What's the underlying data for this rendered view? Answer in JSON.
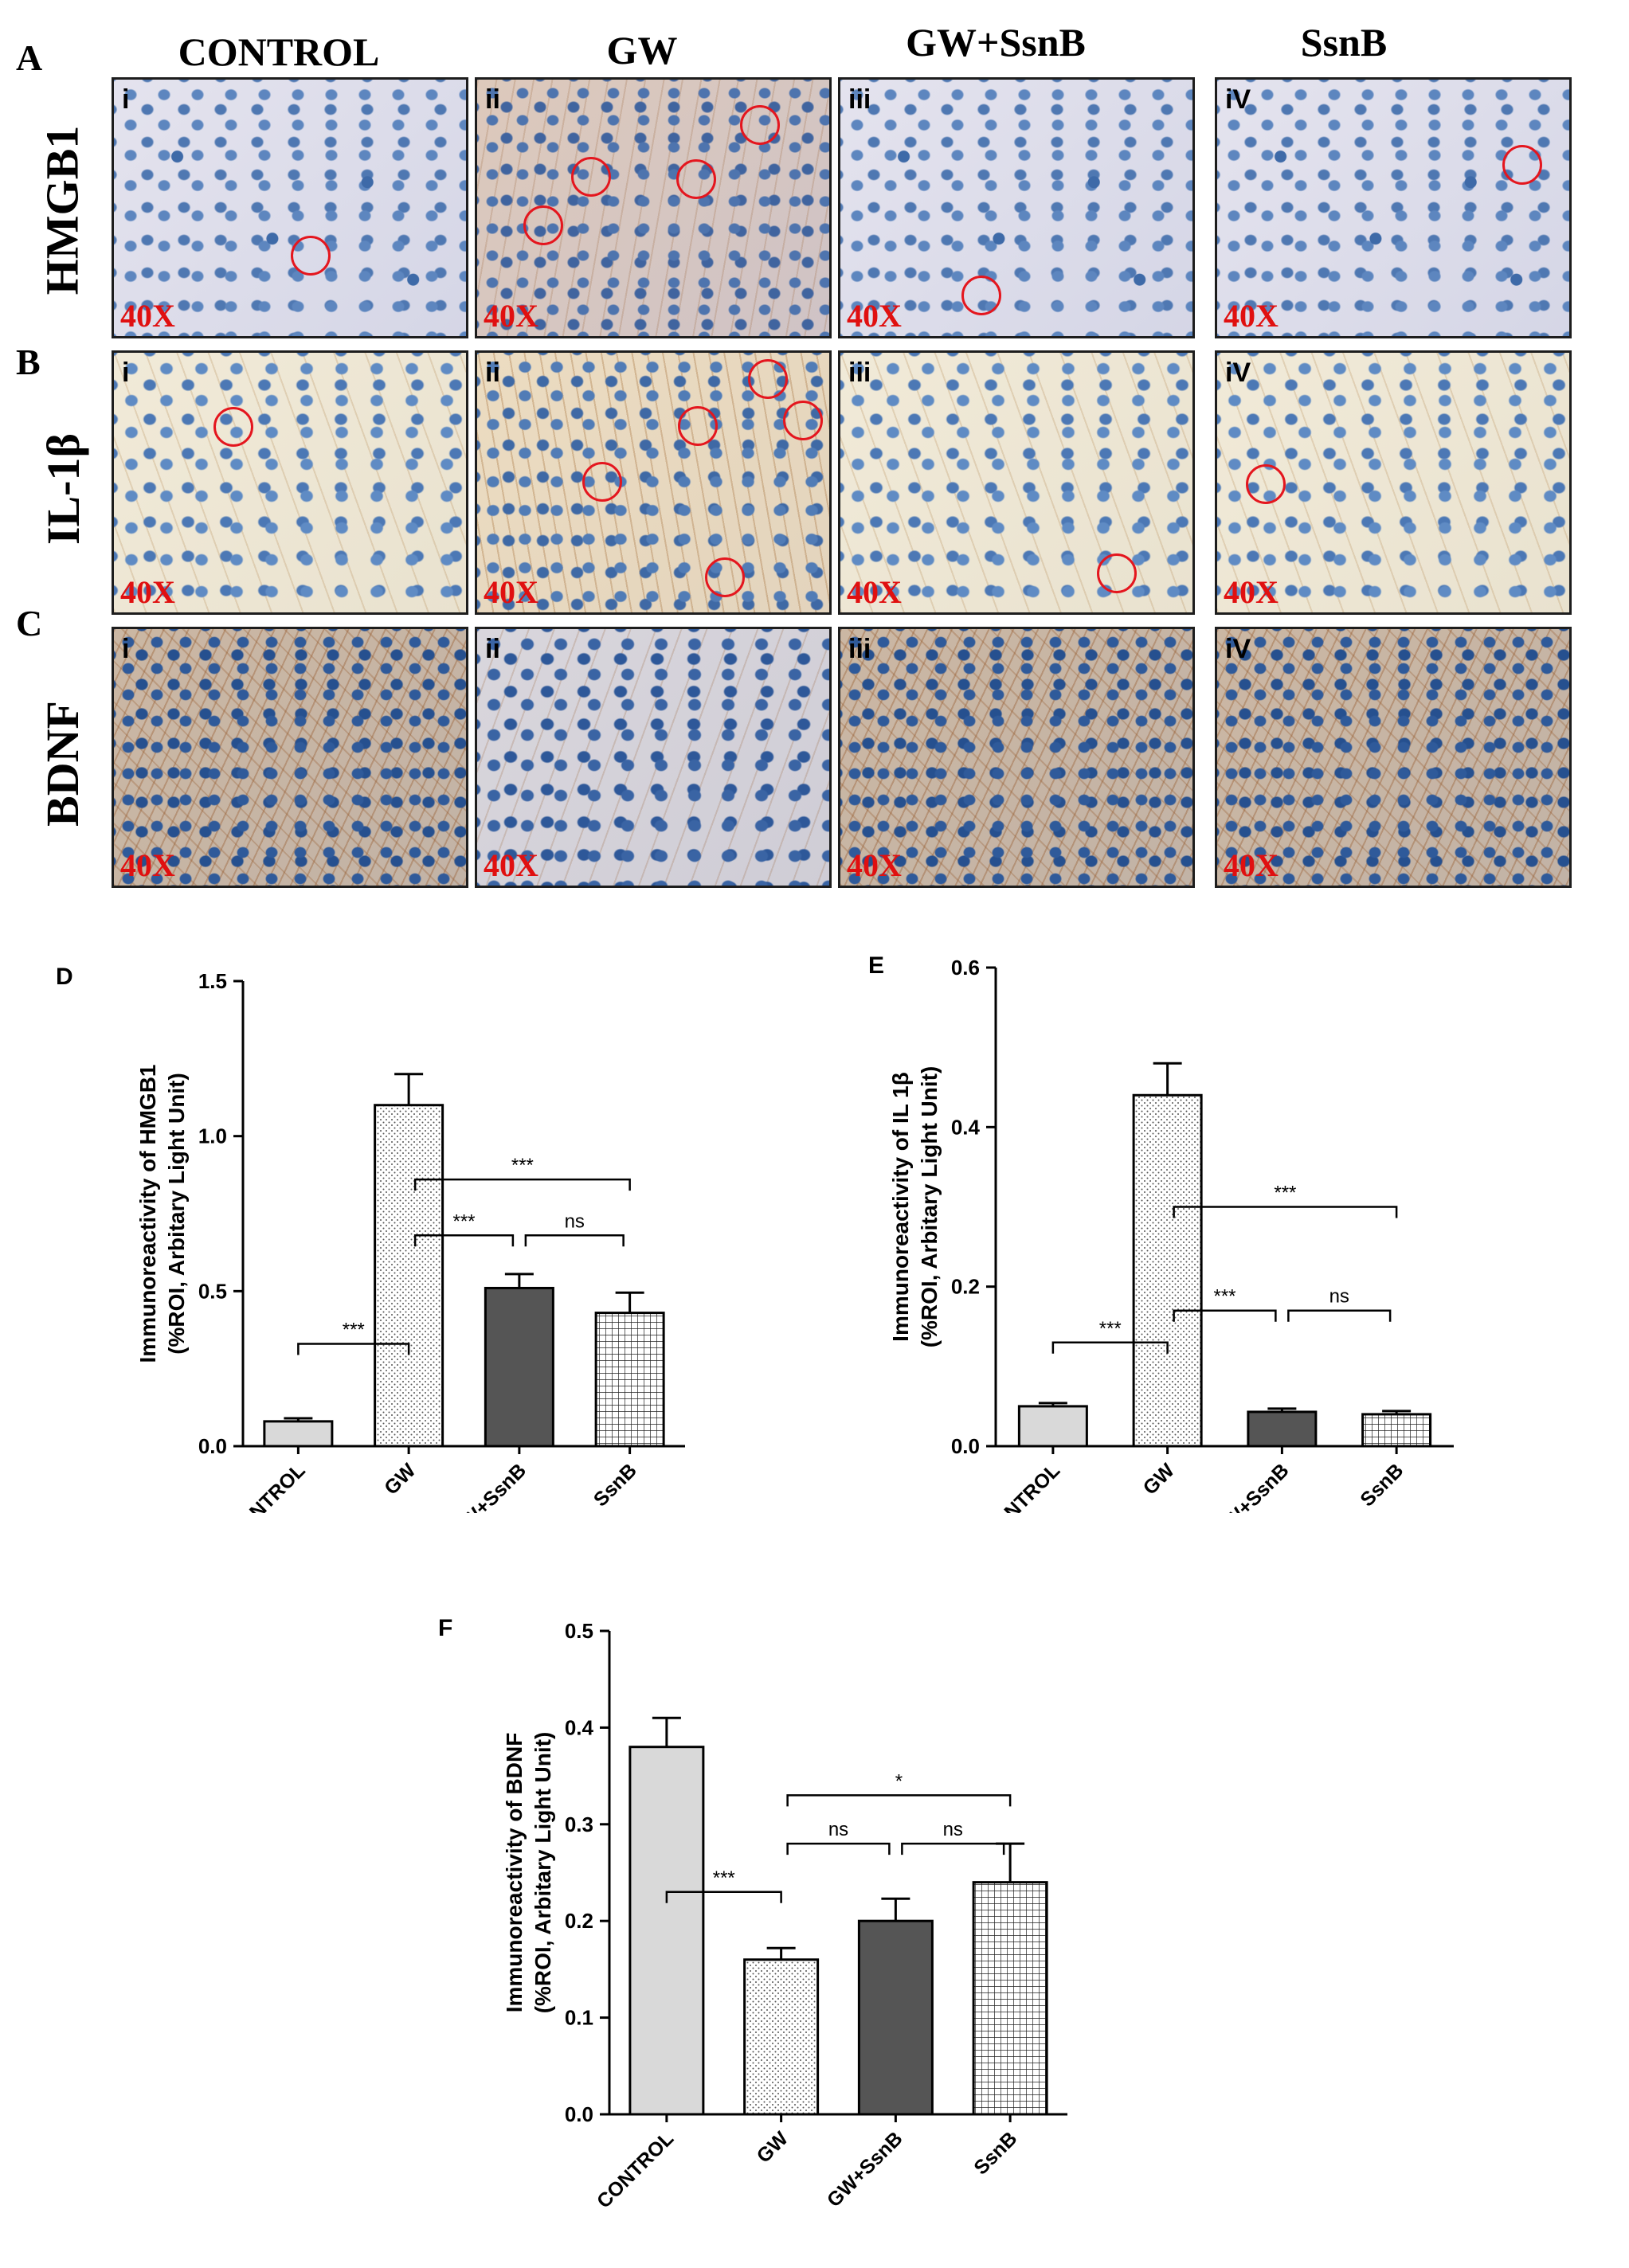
{
  "figure": {
    "column_headers": [
      "CONTROL",
      "GW",
      "GW+SsnB",
      "SsnB"
    ],
    "rows": [
      {
        "letter": "A",
        "label": "HMGB1",
        "sub_labels": [
          "i",
          "ii",
          "iii",
          "iV"
        ],
        "magnification": "40X"
      },
      {
        "letter": "B",
        "label": "IL-1β",
        "sub_labels": [
          "i",
          "ii",
          "iii",
          "iV"
        ],
        "magnification": "40X"
      },
      {
        "letter": "C",
        "label": "BDNF",
        "sub_labels": [
          "i",
          "ii",
          "iii",
          "iV"
        ],
        "magnification": "40X"
      }
    ],
    "colors": {
      "marker_circle": "#e4161e",
      "magnification_text": "#e01010"
    }
  },
  "chart_data": [
    {
      "panel": "D",
      "type": "bar",
      "categories": [
        "CONTROL",
        "GW",
        "GW+SsnB",
        "SsnB"
      ],
      "values": [
        0.08,
        1.1,
        0.51,
        0.43
      ],
      "errors": [
        0.01,
        0.1,
        0.045,
        0.065
      ],
      "ylabel_line1": "Immunoreactivity of HMGB1",
      "ylabel_line2": "(%ROI, Arbitary Light Unit)",
      "ylim": [
        0,
        1.5
      ],
      "yticks": [
        "0.0",
        "0.5",
        "1.0",
        "1.5"
      ],
      "bar_fills": [
        "light-gray",
        "dotted",
        "dark-gray",
        "grid"
      ],
      "significance": [
        {
          "from": 0,
          "to": 1,
          "label": "***",
          "level": 0.33
        },
        {
          "from": 1,
          "to": 2,
          "label": "***",
          "level": 0.68
        },
        {
          "from": 2,
          "to": 3,
          "label": "ns",
          "level": 0.68
        },
        {
          "from": 1,
          "to": 3,
          "label": "***",
          "level": 0.86
        }
      ]
    },
    {
      "panel": "E",
      "type": "bar",
      "categories": [
        "CONTROL",
        "GW",
        "GW+SsnB",
        "SsnB"
      ],
      "values": [
        0.05,
        0.44,
        0.043,
        0.04
      ],
      "errors": [
        0.004,
        0.04,
        0.004,
        0.004
      ],
      "ylabel_line1": "Immunoreactivity of  IL 1β",
      "ylabel_line2": "(%ROI, Arbitary Light Unit)",
      "ylim": [
        0,
        0.6
      ],
      "yticks": [
        "0.0",
        "0.2",
        "0.4",
        "0.6"
      ],
      "bar_fills": [
        "light-gray",
        "dotted",
        "dark-gray",
        "grid"
      ],
      "significance": [
        {
          "from": 0,
          "to": 1,
          "label": "***",
          "level": 0.13
        },
        {
          "from": 1,
          "to": 2,
          "label": "***",
          "level": 0.17
        },
        {
          "from": 2,
          "to": 3,
          "label": "ns",
          "level": 0.17
        },
        {
          "from": 1,
          "to": 3,
          "label": "***",
          "level": 0.3
        }
      ]
    },
    {
      "panel": "F",
      "type": "bar",
      "categories": [
        "CONTROL",
        "GW",
        "GW+SsnB",
        "SsnB"
      ],
      "values": [
        0.38,
        0.16,
        0.2,
        0.24
      ],
      "errors": [
        0.03,
        0.012,
        0.023,
        0.04
      ],
      "ylabel_line1": "Immunoreactivity of  BDNF",
      "ylabel_line2": "(%ROI, Arbitary Light Unit)",
      "ylim": [
        0,
        0.5
      ],
      "yticks": [
        "0.0",
        "0.1",
        "0.2",
        "0.3",
        "0.4",
        "0.5"
      ],
      "bar_fills": [
        "light-gray",
        "dotted",
        "dark-gray",
        "grid"
      ],
      "significance": [
        {
          "from": 0,
          "to": 1,
          "label": "***",
          "level": 0.23
        },
        {
          "from": 1,
          "to": 2,
          "label": "ns",
          "level": 0.28
        },
        {
          "from": 2,
          "to": 3,
          "label": "ns",
          "level": 0.28
        },
        {
          "from": 1,
          "to": 3,
          "label": "*",
          "level": 0.33
        }
      ]
    }
  ]
}
